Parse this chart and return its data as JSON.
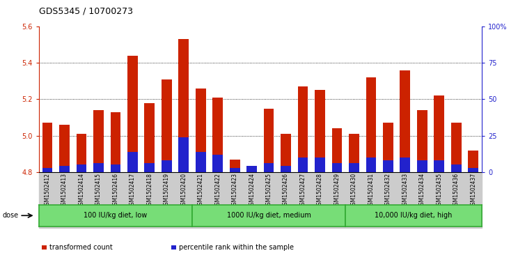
{
  "title": "GDS5345 / 10700273",
  "samples": [
    "GSM1502412",
    "GSM1502413",
    "GSM1502414",
    "GSM1502415",
    "GSM1502416",
    "GSM1502417",
    "GSM1502418",
    "GSM1502419",
    "GSM1502420",
    "GSM1502421",
    "GSM1502422",
    "GSM1502423",
    "GSM1502424",
    "GSM1502425",
    "GSM1502426",
    "GSM1502427",
    "GSM1502428",
    "GSM1502429",
    "GSM1502430",
    "GSM1502431",
    "GSM1502432",
    "GSM1502433",
    "GSM1502434",
    "GSM1502435",
    "GSM1502436",
    "GSM1502437"
  ],
  "transformed_count": [
    5.07,
    5.06,
    5.01,
    5.14,
    5.13,
    5.44,
    5.18,
    5.31,
    5.53,
    5.26,
    5.21,
    4.87,
    4.82,
    5.15,
    5.01,
    5.27,
    5.25,
    5.04,
    5.01,
    5.32,
    5.07,
    5.36,
    5.14,
    5.22,
    5.07,
    4.92
  ],
  "percentile_rank": [
    3,
    4,
    5,
    6,
    5,
    14,
    6,
    8,
    24,
    14,
    12,
    3,
    4,
    6,
    4,
    10,
    10,
    6,
    6,
    10,
    8,
    10,
    8,
    8,
    5,
    3
  ],
  "baseline": 4.8,
  "ylim_left": [
    4.8,
    5.6
  ],
  "ylim_right": [
    0,
    100
  ],
  "yticks_left": [
    4.8,
    5.0,
    5.2,
    5.4,
    5.6
  ],
  "yticks_right": [
    0,
    25,
    50,
    75,
    100
  ],
  "ytick_labels_right": [
    "0",
    "25",
    "50",
    "75",
    "100%"
  ],
  "bar_color_red": "#cc2200",
  "bar_color_blue": "#2222cc",
  "groups": [
    {
      "label": "100 IU/kg diet, low",
      "start": 0,
      "end": 9
    },
    {
      "label": "1000 IU/kg diet, medium",
      "start": 9,
      "end": 18
    },
    {
      "label": "10,000 IU/kg diet, high",
      "start": 18,
      "end": 26
    }
  ],
  "group_color": "#77dd77",
  "group_border_color": "#33aa33",
  "dose_label": "dose",
  "legend_items": [
    {
      "label": "transformed count",
      "color": "#cc2200"
    },
    {
      "label": "percentile rank within the sample",
      "color": "#2222cc"
    }
  ],
  "plot_bg_color": "#ffffff",
  "fig_bg_color": "#ffffff",
  "xtick_bg_color": "#cccccc",
  "grid_color": "#000000",
  "title_fontsize": 9,
  "tick_fontsize": 6,
  "axis_color_left": "#cc2200",
  "axis_color_right": "#2222cc"
}
